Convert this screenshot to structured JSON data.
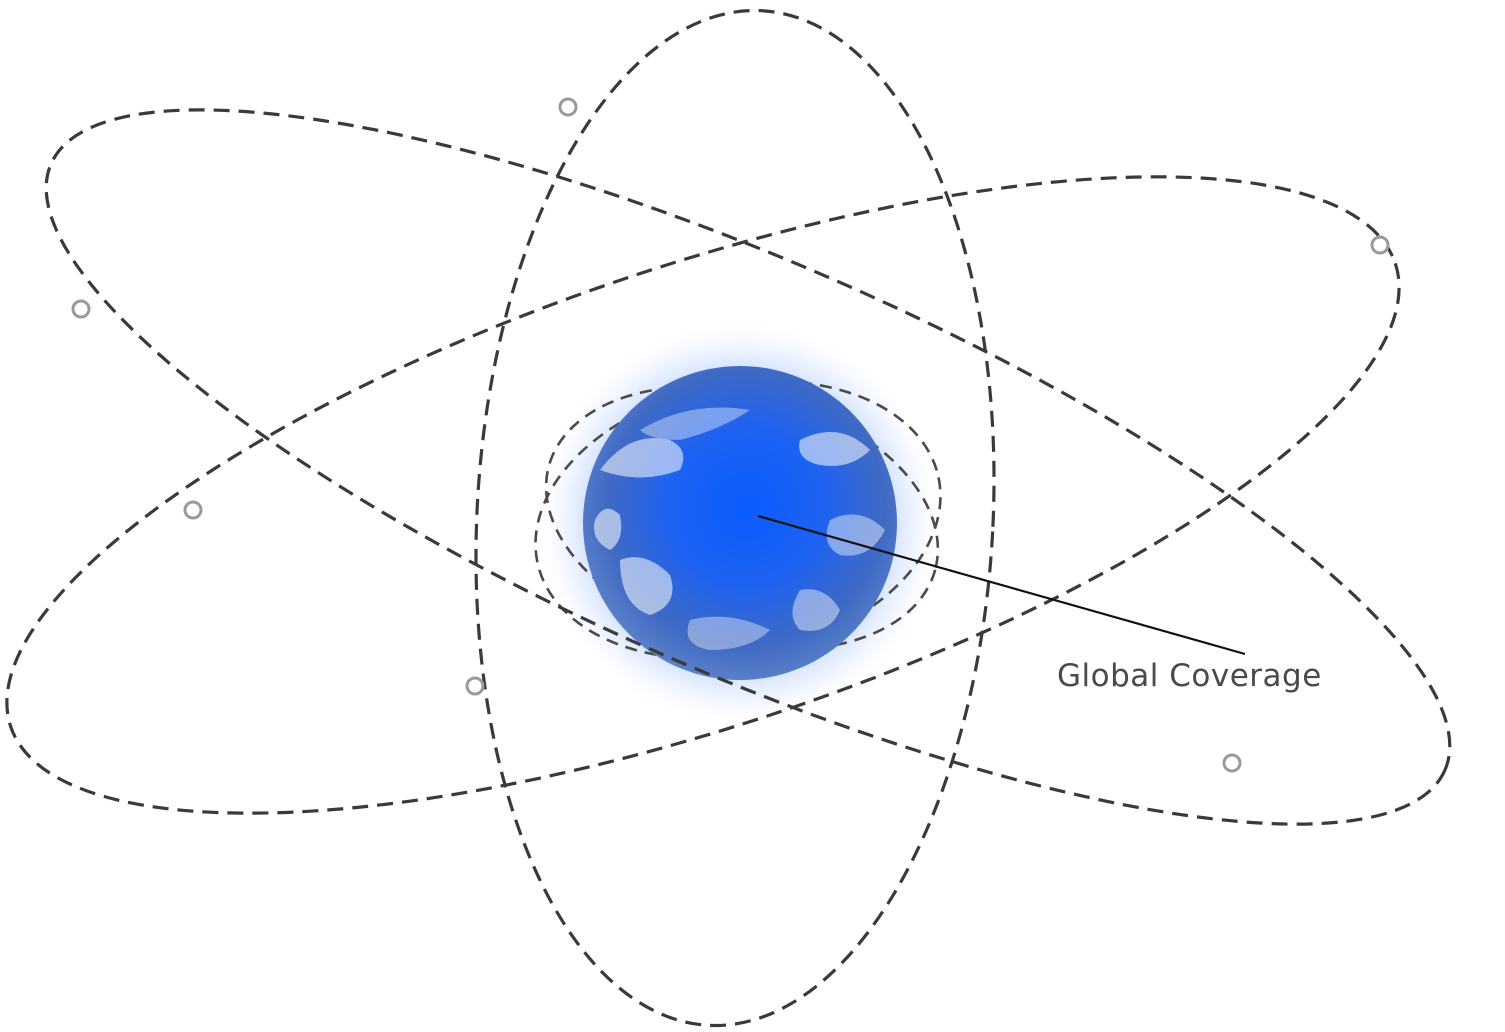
{
  "diagram": {
    "label": "Global Coverage",
    "colors": {
      "orbit": "#3a3a3a",
      "earth_core": "#1a5cff",
      "earth_edge": "#3d63b8",
      "halo": "#cfe0ff"
    },
    "icons": {
      "center": "earth-globe-icon",
      "satellite": "satellite-marker-icon"
    }
  }
}
